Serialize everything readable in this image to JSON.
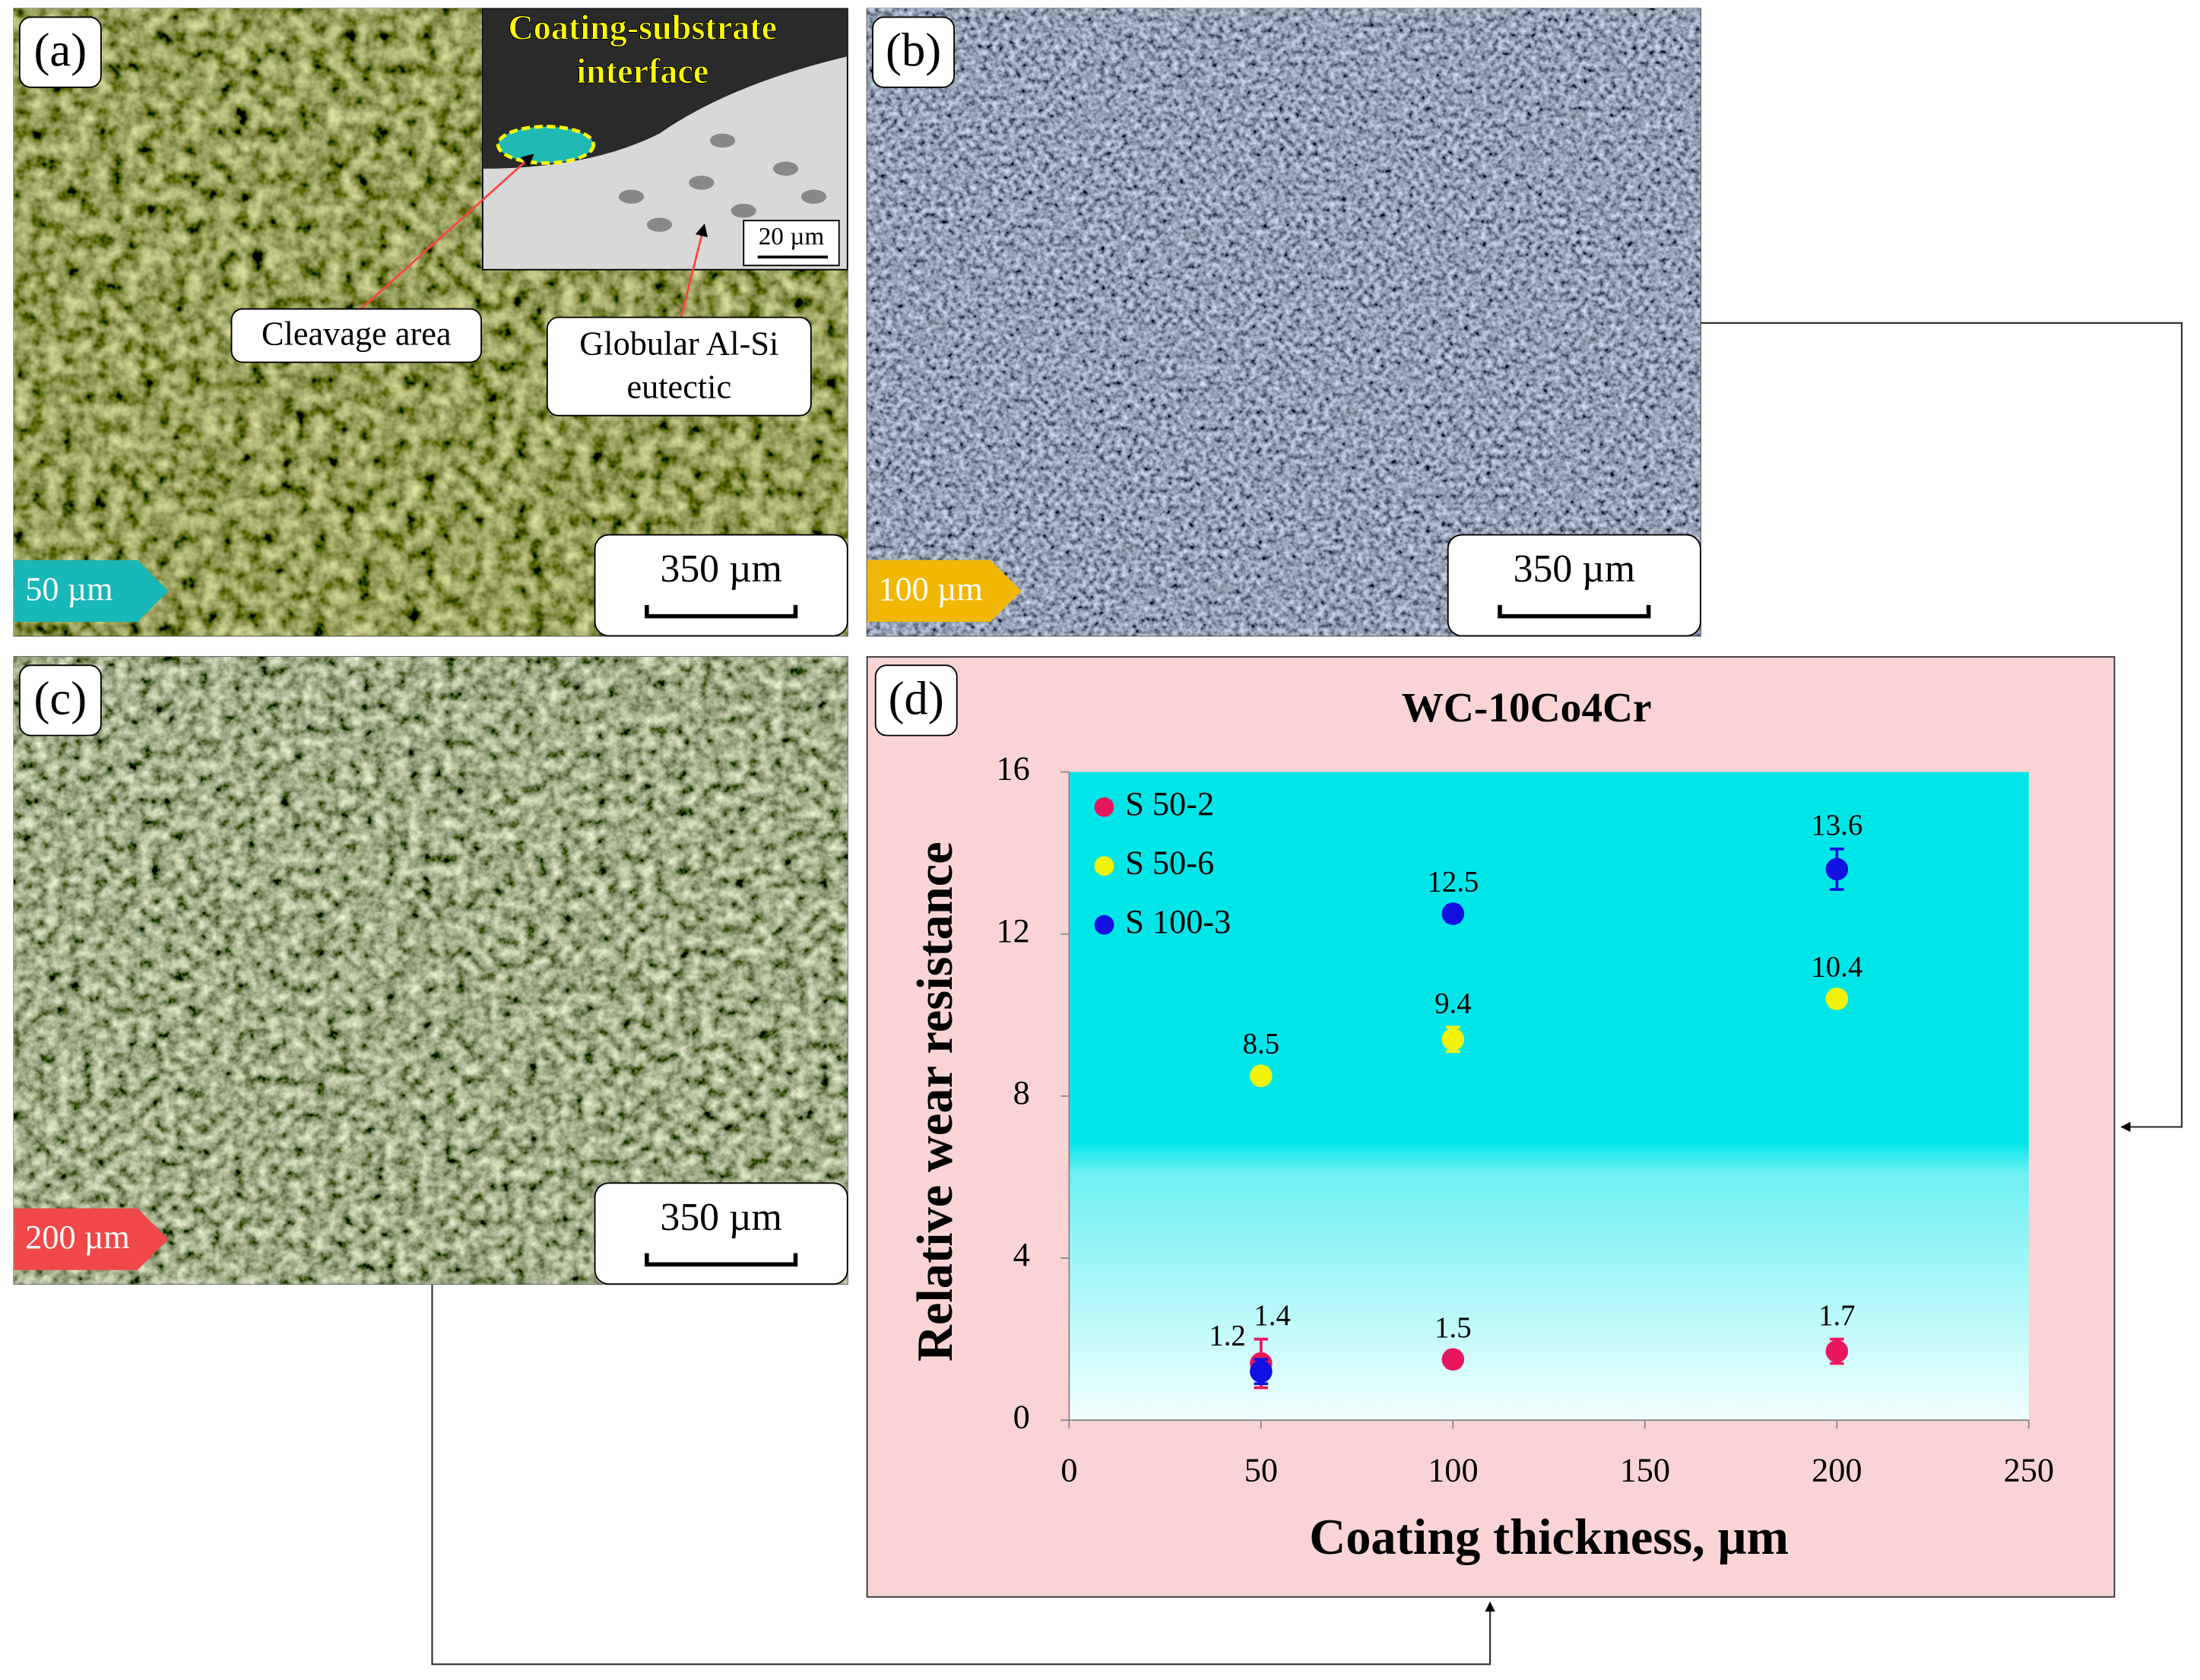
{
  "panels": [
    {
      "label": "(a)",
      "tag": "50 µm",
      "scale_bar": "350 µm",
      "inset": {
        "title": [
          "Coating-substrate",
          "interface"
        ],
        "scale_bar": "20 µm"
      },
      "callouts": [
        [
          "Cleavage area"
        ],
        [
          "Globular Al-Si",
          "eutectic"
        ]
      ]
    },
    {
      "label": "(b)",
      "tag": "100 µm",
      "scale_bar": "350 µm"
    },
    {
      "label": "(c)",
      "tag": "200 µm",
      "scale_bar": "350 µm"
    },
    {
      "label": "(d)"
    }
  ],
  "chart_data": {
    "type": "scatter",
    "title": "WC-10Co4Cr",
    "x_label": "Coating thickness, µm",
    "y_label": "Relative wear resistance",
    "x": [
      50,
      100,
      200
    ],
    "series": [
      {
        "name": "S 50-2",
        "color": "#e8175d",
        "values": [
          1.4,
          1.5,
          1.7
        ],
        "errors": [
          0.6,
          0.2,
          0.3
        ]
      },
      {
        "name": "S 50-6",
        "color": "#f2f20a",
        "values": [
          8.5,
          9.4,
          10.4
        ],
        "errors": [
          0.2,
          0.3,
          0.2
        ]
      },
      {
        "name": "S 100-3",
        "color": "#1010e0",
        "values": [
          1.2,
          12.5,
          13.6
        ],
        "errors": [
          0.3,
          0.2,
          0.5
        ]
      }
    ],
    "xlim": [
      0,
      250
    ],
    "xticks": [
      0,
      50,
      100,
      150,
      200,
      250
    ],
    "ylim": [
      0,
      16
    ],
    "yticks": [
      0,
      4,
      8,
      12,
      16
    ]
  }
}
